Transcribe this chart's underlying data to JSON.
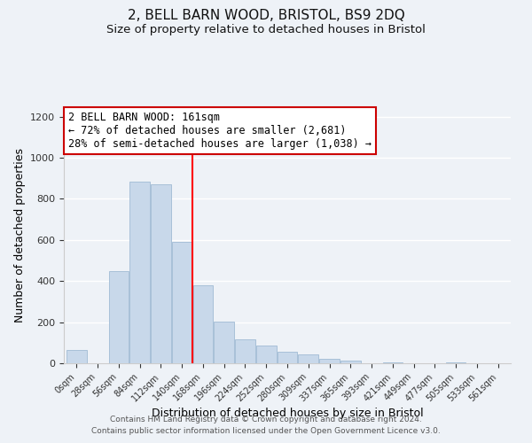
{
  "title": "2, BELL BARN WOOD, BRISTOL, BS9 2DQ",
  "subtitle": "Size of property relative to detached houses in Bristol",
  "xlabel": "Distribution of detached houses by size in Bristol",
  "ylabel": "Number of detached properties",
  "bar_labels": [
    "0sqm",
    "28sqm",
    "56sqm",
    "84sqm",
    "112sqm",
    "140sqm",
    "168sqm",
    "196sqm",
    "224sqm",
    "252sqm",
    "280sqm",
    "309sqm",
    "337sqm",
    "365sqm",
    "393sqm",
    "421sqm",
    "449sqm",
    "477sqm",
    "505sqm",
    "533sqm",
    "561sqm"
  ],
  "bar_values": [
    65,
    0,
    447,
    882,
    869,
    590,
    378,
    204,
    116,
    88,
    57,
    45,
    20,
    15,
    0,
    5,
    0,
    0,
    3,
    0,
    0
  ],
  "bar_color": "#c8d8ea",
  "bar_edge_color": "#a8c0d8",
  "vline_x": 5.5,
  "vline_color": "red",
  "annotation_title": "2 BELL BARN WOOD: 161sqm",
  "annotation_line1": "← 72% of detached houses are smaller (2,681)",
  "annotation_line2": "28% of semi-detached houses are larger (1,038) →",
  "annotation_box_color": "#ffffff",
  "annotation_box_edge": "#cc0000",
  "ylim": [
    0,
    1250
  ],
  "yticks": [
    0,
    200,
    400,
    600,
    800,
    1000,
    1200
  ],
  "footer1": "Contains HM Land Registry data © Crown copyright and database right 2024.",
  "footer2": "Contains public sector information licensed under the Open Government Licence v3.0.",
  "bg_color": "#eef2f7",
  "plot_bg_color": "#eef2f7",
  "grid_color": "#ffffff",
  "title_fontsize": 11,
  "subtitle_fontsize": 9.5,
  "annotation_fontsize": 8.5
}
